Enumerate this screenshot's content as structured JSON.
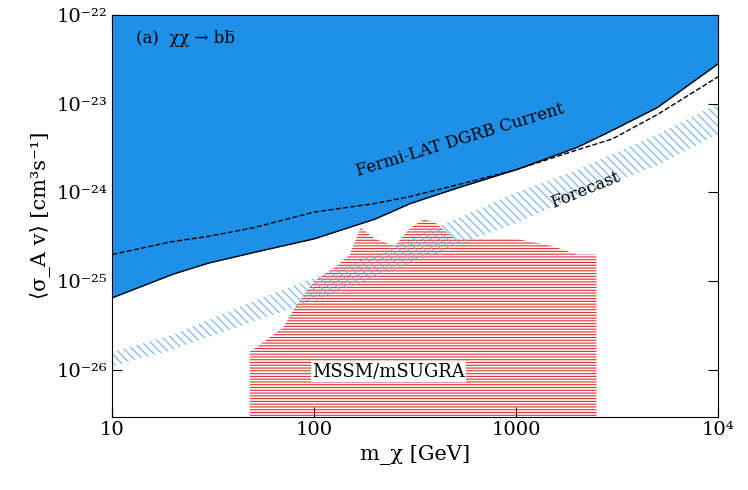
{
  "chart_data": {
    "type": "area",
    "x_label": "m_χ [GeV]",
    "y_label": "⟨σ_A v⟩ [cm³s⁻¹]",
    "log": true,
    "grid": false,
    "xlim": [
      10,
      10000
    ],
    "ylim": [
      3e-27,
      1e-22
    ],
    "xticks": [
      10,
      100,
      1000,
      {
        "value": 10000,
        "label": "10⁴"
      }
    ],
    "yticks": [
      {
        "value": 1e-26,
        "label": "10⁻²⁶"
      },
      {
        "value": 1e-25,
        "label": "10⁻²⁵"
      },
      {
        "value": 1e-24,
        "label": "10⁻²⁴"
      },
      {
        "value": 1e-23,
        "label": "10⁻²³"
      },
      {
        "value": 1e-22,
        "label": "10⁻²²"
      }
    ],
    "annotations": [
      "(a)  χχ → bb̄",
      "Fermi-LAT DGRB Current",
      "Forecast",
      "MSSM/mSUGRA"
    ],
    "series": [
      {
        "type": "area",
        "color": "#1e90e8",
        "line_style": "solid",
        "x": [
          10,
          20,
          30,
          50,
          100,
          200,
          300,
          500,
          1000,
          2000,
          3000,
          5000,
          10000
        ],
        "values": [
          6.5e-26,
          1.2e-25,
          1.6e-25,
          2.1e-25,
          3e-25,
          5e-25,
          7.5e-25,
          1.1e-24,
          1.8e-24,
          3.2e-24,
          5e-24,
          9e-24,
          2.8e-23
        ]
      },
      {
        "type": "line",
        "color": "#000000",
        "line_style": "dashed",
        "x": [
          10,
          20,
          30,
          50,
          100,
          200,
          300,
          500,
          1000,
          2000,
          3000,
          5000,
          10000
        ],
        "values": [
          2e-25,
          2.8e-25,
          3.2e-25,
          4e-25,
          6e-25,
          7.5e-25,
          9e-25,
          1.2e-24,
          1.8e-24,
          3e-24,
          4e-24,
          7.5e-24,
          2e-23
        ]
      },
      {
        "type": "band",
        "color": "#6cb4f0",
        "x": [
          10,
          20,
          50,
          100,
          200,
          500,
          1000,
          2000,
          5000,
          10000
        ],
        "values_low": [
          1.1e-26,
          1.7e-26,
          3.5e-26,
          6e-26,
          1.1e-25,
          2.5e-25,
          4.5e-25,
          9e-25,
          2e-24,
          4.5e-24
        ],
        "values_high": [
          1.6e-26,
          2.5e-26,
          6e-26,
          1.1e-25,
          2e-25,
          5e-25,
          1e-24,
          1.8e-24,
          4.5e-24,
          1e-23
        ]
      },
      {
        "type": "region",
        "color": "#e03030",
        "x": [
          48,
          55,
          70,
          80,
          100,
          130,
          150,
          170,
          200,
          250,
          300,
          350,
          400,
          500,
          700,
          1000,
          1500,
          2000,
          2500,
          2500
        ],
        "values": [
          1.6e-26,
          2e-26,
          3e-26,
          5e-26,
          1e-25,
          1.5e-25,
          2e-25,
          4e-25,
          3e-25,
          2.5e-25,
          4e-25,
          5e-25,
          4.5e-25,
          3e-25,
          3e-25,
          3e-25,
          2.5e-25,
          2e-25,
          2e-25,
          3e-27
        ]
      }
    ]
  }
}
